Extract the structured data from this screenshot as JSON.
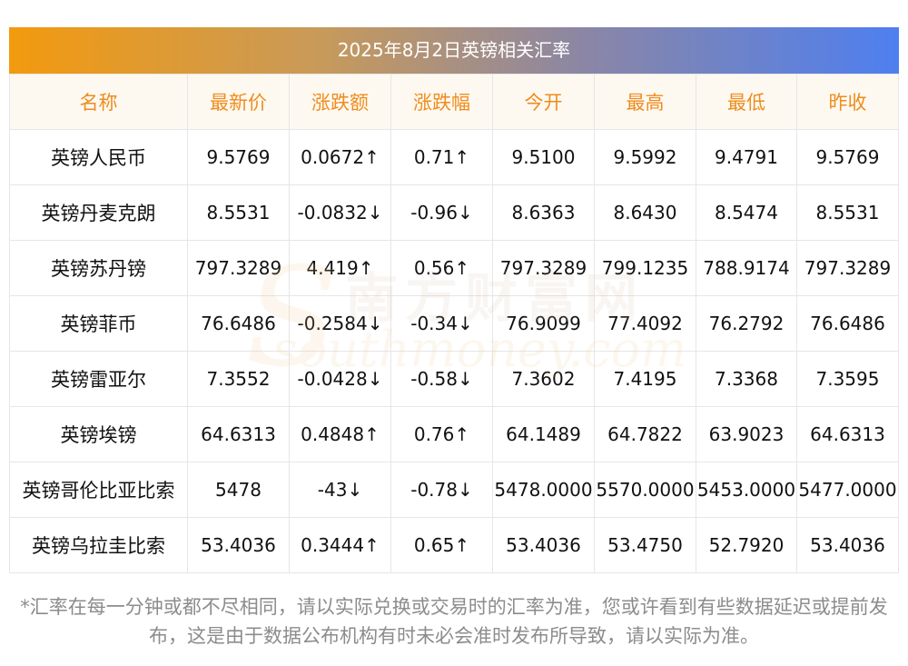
{
  "title": "2025年8月2日英镑相关汇率",
  "headers": [
    "名称",
    "最新价",
    "涨跌额",
    "涨跌幅",
    "今开",
    "最高",
    "最低",
    "昨收"
  ],
  "rows": [
    {
      "name": "英镑人民币",
      "latest": "9.5769",
      "change": "0.0672↑",
      "pct": "0.71↑",
      "open": "9.5100",
      "high": "9.5992",
      "low": "9.4791",
      "prev": "9.5769",
      "dir": "up"
    },
    {
      "name": "英镑丹麦克朗",
      "latest": "8.5531",
      "change": "-0.0832↓",
      "pct": "-0.96↓",
      "open": "8.6363",
      "high": "8.6430",
      "low": "8.5474",
      "prev": "8.5531",
      "dir": "down"
    },
    {
      "name": "英镑苏丹镑",
      "latest": "797.3289",
      "change": "4.419↑",
      "pct": "0.56↑",
      "open": "797.3289",
      "high": "799.1235",
      "low": "788.9174",
      "prev": "797.3289",
      "dir": "up"
    },
    {
      "name": "英镑菲币",
      "latest": "76.6486",
      "change": "-0.2584↓",
      "pct": "-0.34↓",
      "open": "76.9099",
      "high": "77.4092",
      "low": "76.2792",
      "prev": "76.6486",
      "dir": "down"
    },
    {
      "name": "英镑雷亚尔",
      "latest": "7.3552",
      "change": "-0.0428↓",
      "pct": "-0.58↓",
      "open": "7.3602",
      "high": "7.4195",
      "low": "7.3368",
      "prev": "7.3595",
      "dir": "down"
    },
    {
      "name": "英镑埃镑",
      "latest": "64.6313",
      "change": "0.4848↑",
      "pct": "0.76↑",
      "open": "64.1489",
      "high": "64.7822",
      "low": "63.9023",
      "prev": "64.6313",
      "dir": "up"
    },
    {
      "name": "英镑哥伦比亚比索",
      "latest": "5478",
      "change": "-43↓",
      "pct": "-0.78↓",
      "open": "5478.0000",
      "high": "5570.0000",
      "low": "5453.0000",
      "prev": "5477.0000",
      "dir": "down"
    },
    {
      "name": "英镑乌拉圭比索",
      "latest": "53.4036",
      "change": "0.3444↑",
      "pct": "0.65↑",
      "open": "53.4036",
      "high": "53.4750",
      "low": "52.7920",
      "prev": "53.4036",
      "dir": "up"
    }
  ],
  "watermark": {
    "cn": "南方财富网",
    "en": "southmoney.com"
  },
  "note": "*汇率在每一分钟或都不尽相同，请以实际兑换或交易时的汇率为准，您或许看到有些数据延迟或提前发布，这是由于数据公布机构有时未必会准时发布所导致，请以实际为准。",
  "colors": {
    "up": "#e8141e",
    "down": "#1a8a1a",
    "header_text": "#f08c1c"
  }
}
